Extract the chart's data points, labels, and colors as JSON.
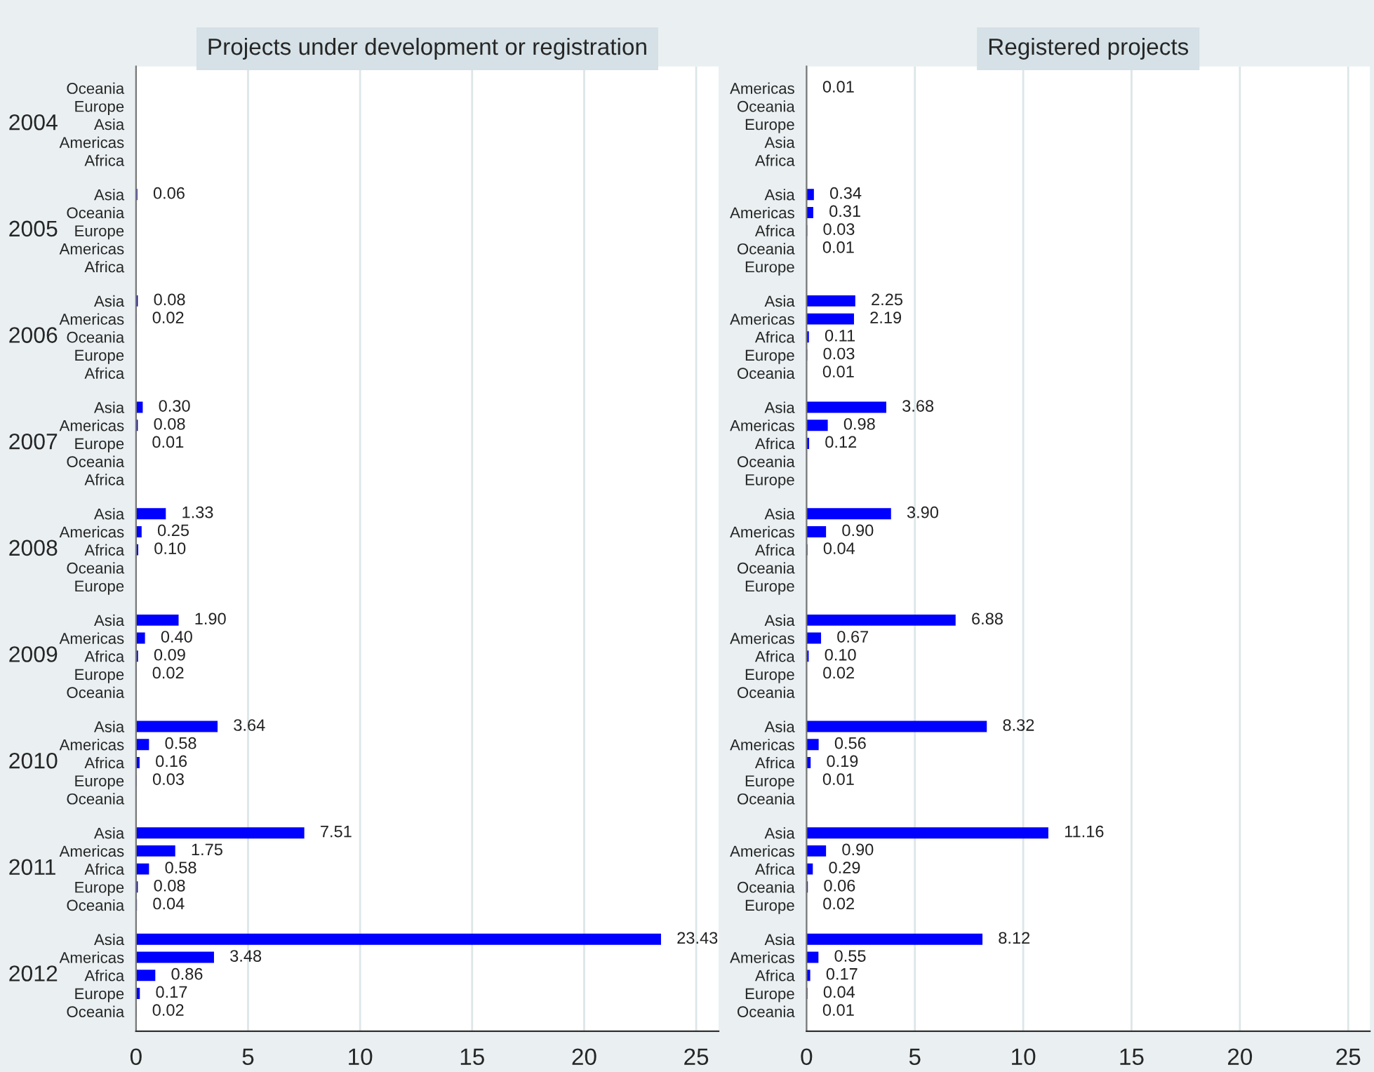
{
  "chart_data": [
    {
      "type": "bar",
      "orientation": "horizontal",
      "title": "Projects under development or registration",
      "categories": [
        "Oceania",
        "Europe",
        "Asia",
        "Americas",
        "Africa",
        "Asia",
        "Oceania",
        "Europe",
        "Americas",
        "Africa",
        "Asia",
        "Americas",
        "Oceania",
        "Europe",
        "Africa",
        "Asia",
        "Americas",
        "Europe",
        "Oceania",
        "Africa",
        "Asia",
        "Americas",
        "Africa",
        "Oceania",
        "Europe",
        "Asia",
        "Americas",
        "Africa",
        "Europe",
        "Oceania",
        "Asia",
        "Americas",
        "Africa",
        "Europe",
        "Oceania",
        "Asia",
        "Americas",
        "Africa",
        "Europe",
        "Oceania",
        "Asia",
        "Americas",
        "Africa",
        "Europe",
        "Oceania"
      ],
      "values": [
        null,
        null,
        null,
        null,
        null,
        0.06,
        null,
        null,
        null,
        null,
        0.08,
        0.02,
        null,
        null,
        null,
        0.3,
        0.08,
        0.01,
        null,
        null,
        1.33,
        0.25,
        0.1,
        null,
        null,
        1.9,
        0.4,
        0.09,
        0.02,
        null,
        3.64,
        0.58,
        0.16,
        0.03,
        null,
        7.51,
        1.75,
        0.58,
        0.08,
        0.04,
        23.43,
        3.48,
        0.86,
        0.17,
        0.02
      ],
      "value_labels": [
        null,
        null,
        null,
        null,
        null,
        "0.06",
        null,
        null,
        null,
        null,
        "0.08",
        "0.02",
        null,
        null,
        null,
        "0.30",
        "0.08",
        "0.01",
        null,
        null,
        "1.33",
        "0.25",
        "0.10",
        null,
        null,
        "1.90",
        "0.40",
        "0.09",
        "0.02",
        null,
        "3.64",
        "0.58",
        "0.16",
        "0.03",
        null,
        "7.51",
        "1.75",
        "0.58",
        "0.08",
        "0.04",
        "23.43",
        "3.48",
        "0.86",
        "0.17",
        "0.02"
      ],
      "color": "#0000ff",
      "data_labels": true,
      "annotations": [
        "2004",
        "2005",
        "2006",
        "2007",
        "2008",
        "2009",
        "2010",
        "2011",
        "2012"
      ],
      "xlim": [
        0,
        26
      ],
      "xticks": [
        0,
        5,
        10,
        15,
        20,
        25
      ],
      "grid": "x"
    },
    {
      "type": "bar",
      "orientation": "horizontal",
      "title": "Registered projects",
      "categories": [
        "Americas",
        "Oceania",
        "Europe",
        "Asia",
        "Africa",
        "Asia",
        "Americas",
        "Africa",
        "Oceania",
        "Europe",
        "Asia",
        "Americas",
        "Africa",
        "Europe",
        "Oceania",
        "Asia",
        "Americas",
        "Africa",
        "Oceania",
        "Europe",
        "Asia",
        "Americas",
        "Africa",
        "Oceania",
        "Europe",
        "Asia",
        "Americas",
        "Africa",
        "Europe",
        "Oceania",
        "Asia",
        "Americas",
        "Africa",
        "Europe",
        "Oceania",
        "Asia",
        "Americas",
        "Africa",
        "Oceania",
        "Europe",
        "Asia",
        "Americas",
        "Africa",
        "Europe",
        "Oceania"
      ],
      "values": [
        0.01,
        null,
        null,
        null,
        null,
        0.34,
        0.31,
        0.03,
        0.01,
        null,
        2.25,
        2.19,
        0.11,
        0.03,
        0.01,
        3.68,
        0.98,
        0.12,
        null,
        null,
        3.9,
        0.9,
        0.04,
        null,
        null,
        6.88,
        0.67,
        0.1,
        0.02,
        null,
        8.32,
        0.56,
        0.19,
        0.01,
        null,
        11.16,
        0.9,
        0.29,
        0.06,
        0.02,
        8.12,
        0.55,
        0.17,
        0.04,
        0.01
      ],
      "value_labels": [
        "0.01",
        null,
        null,
        null,
        null,
        "0.34",
        "0.31",
        "0.03",
        "0.01",
        null,
        "2.25",
        "2.19",
        "0.11",
        "0.03",
        "0.01",
        "3.68",
        "0.98",
        "0.12",
        null,
        null,
        "3.90",
        "0.90",
        "0.04",
        null,
        null,
        "6.88",
        "0.67",
        "0.10",
        "0.02",
        null,
        "8.32",
        "0.56",
        "0.19",
        "0.01",
        null,
        "11.16",
        "0.90",
        "0.29",
        "0.06",
        "0.02",
        "8.12",
        "0.55",
        "0.17",
        "0.04",
        "0.01"
      ],
      "color": "#0000ff",
      "data_labels": true,
      "xlim": [
        0,
        26
      ],
      "xticks": [
        0,
        5,
        10,
        15,
        20,
        25
      ],
      "grid": "x"
    }
  ]
}
